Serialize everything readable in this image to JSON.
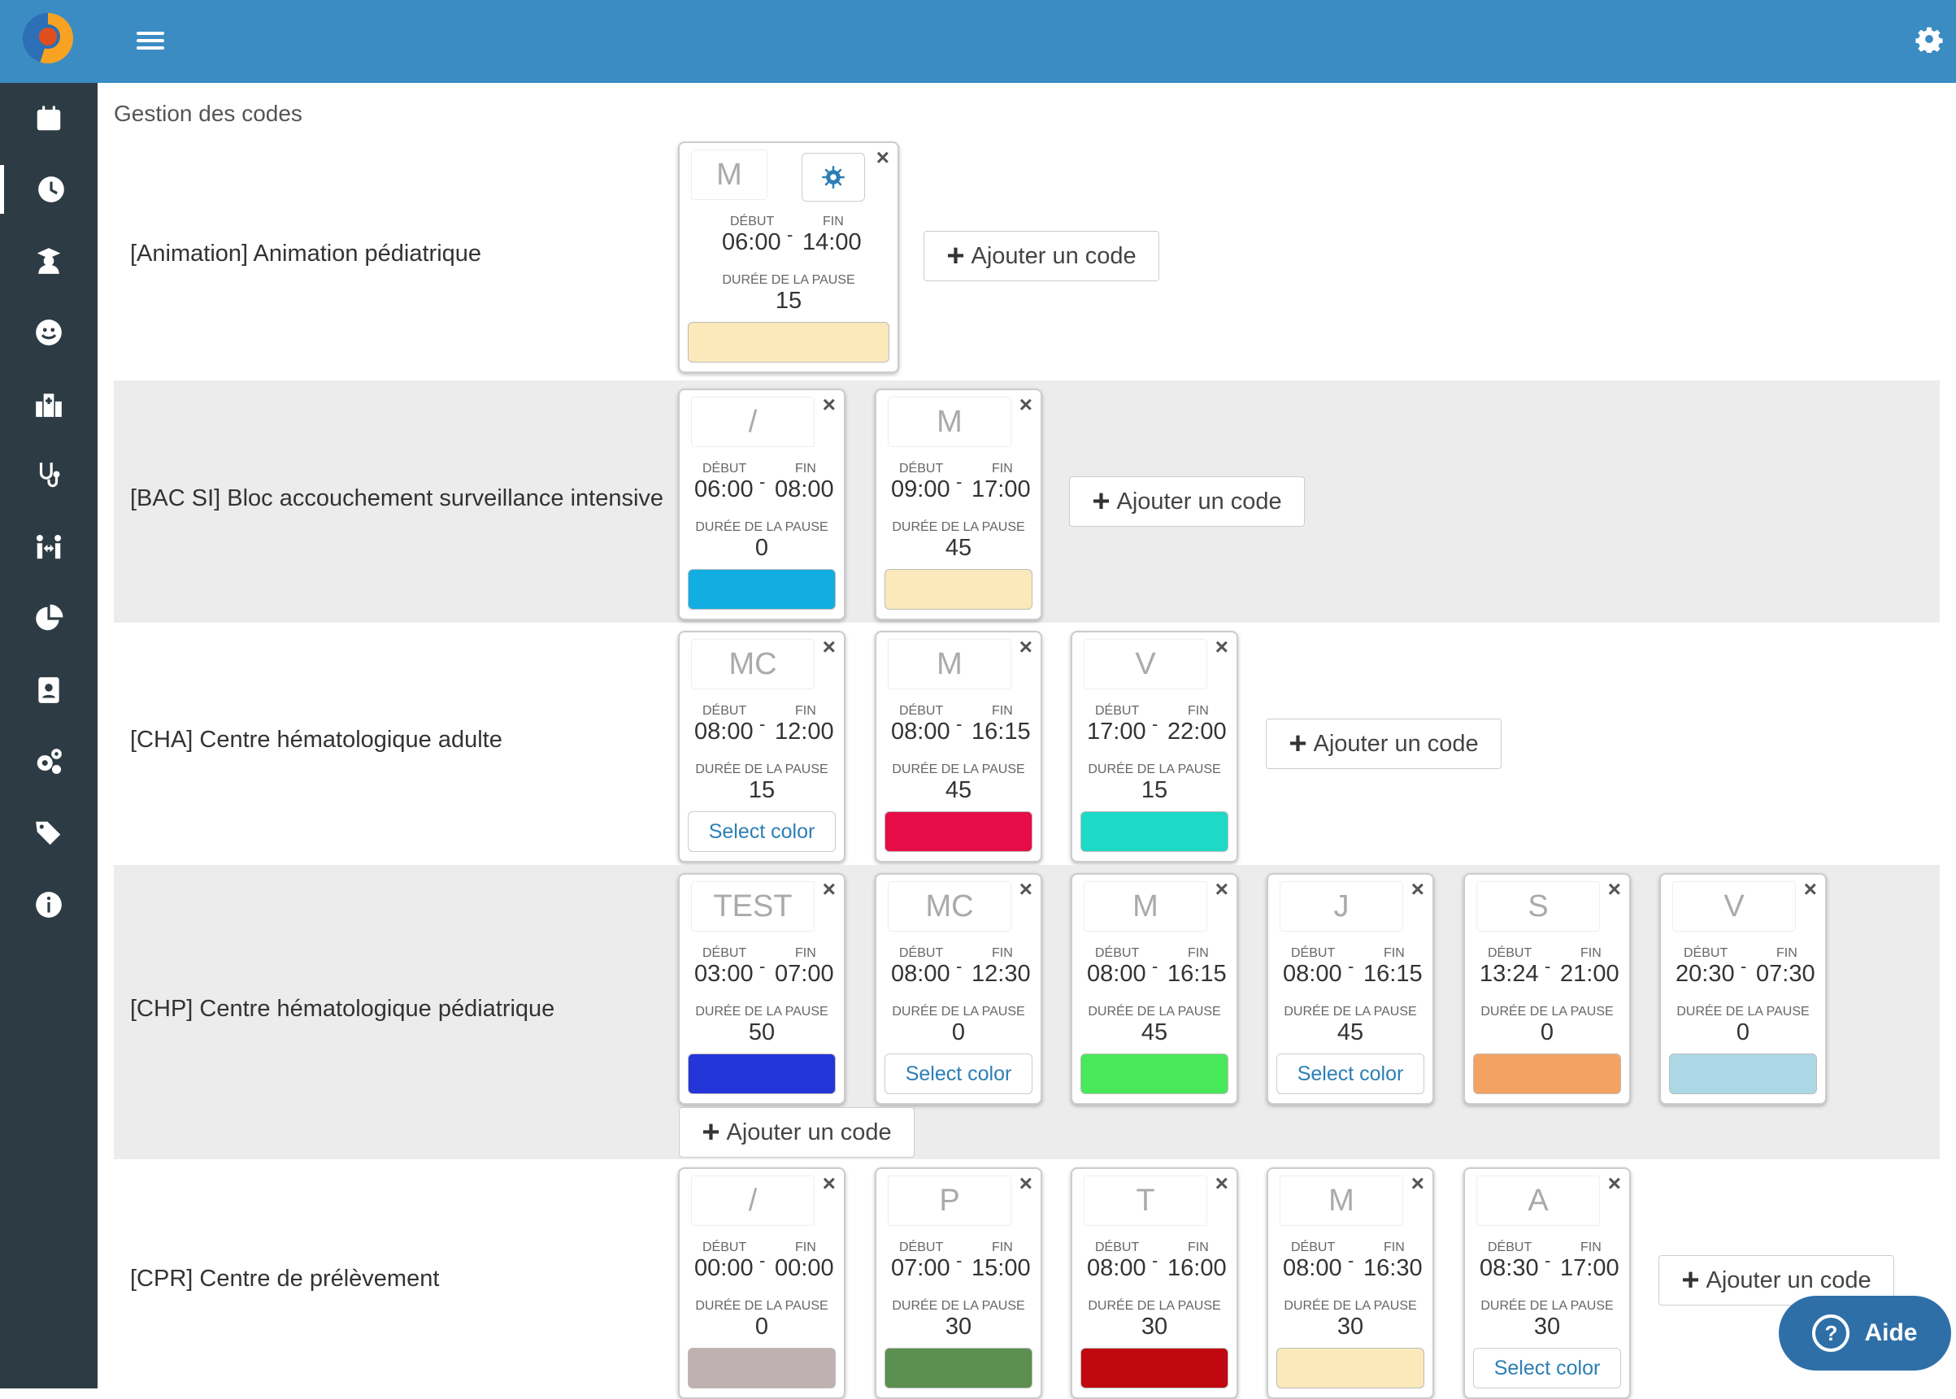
{
  "page_title": "Gestion des codes",
  "labels": {
    "debut": "DÉBUT",
    "fin": "FIN",
    "pause": "DURÉE DE LA PAUSE",
    "add": "Ajouter un code",
    "select_color": "Select color",
    "dash": "-"
  },
  "help": "Aide",
  "sections": [
    {
      "title": "[Animation] Animation pédiatrique",
      "codes": [
        {
          "code": "M",
          "start": "06:00",
          "end": "14:00",
          "pause": "15",
          "color": "#fbe9bb"
        }
      ]
    },
    {
      "title": "[BAC SI] Bloc accouchement surveillance intensive",
      "codes": [
        {
          "code": "/",
          "start": "06:00",
          "end": "08:00",
          "pause": "0",
          "color": "#12aee1"
        },
        {
          "code": "M",
          "start": "09:00",
          "end": "17:00",
          "pause": "45",
          "color": "#fbe9bb"
        }
      ]
    },
    {
      "title": "[CHA] Centre hématologique adulte",
      "codes": [
        {
          "code": "MC",
          "start": "08:00",
          "end": "12:00",
          "pause": "15",
          "color": null
        },
        {
          "code": "M",
          "start": "08:00",
          "end": "16:15",
          "pause": "45",
          "color": "#e50c47"
        },
        {
          "code": "V",
          "start": "17:00",
          "end": "22:00",
          "pause": "15",
          "color": "#1ed9c6"
        }
      ]
    },
    {
      "title": "[CHP] Centre hématologique pédiatrique",
      "codes": [
        {
          "code": "TEST",
          "start": "03:00",
          "end": "07:00",
          "pause": "50",
          "color": "#2536d8"
        },
        {
          "code": "MC",
          "start": "08:00",
          "end": "12:30",
          "pause": "0",
          "color": null
        },
        {
          "code": "M",
          "start": "08:00",
          "end": "16:15",
          "pause": "45",
          "color": "#48e85b"
        },
        {
          "code": "J",
          "start": "08:00",
          "end": "16:15",
          "pause": "45",
          "color": null
        },
        {
          "code": "S",
          "start": "13:24",
          "end": "21:00",
          "pause": "0",
          "color": "#f4a261"
        },
        {
          "code": "V",
          "start": "20:30",
          "end": "07:30",
          "pause": "0",
          "color": "#acd8e6"
        }
      ]
    },
    {
      "title": "[CPR] Centre de prélèvement",
      "codes": [
        {
          "code": "/",
          "start": "00:00",
          "end": "00:00",
          "pause": "0",
          "color": "#bfb1b1"
        },
        {
          "code": "P",
          "start": "07:00",
          "end": "15:00",
          "pause": "30",
          "color": "#5a8f4f"
        },
        {
          "code": "T",
          "start": "08:00",
          "end": "16:00",
          "pause": "30",
          "color": "#c00810"
        },
        {
          "code": "M",
          "start": "08:00",
          "end": "16:30",
          "pause": "30",
          "color": "#fbe9bb"
        },
        {
          "code": "A",
          "start": "08:30",
          "end": "17:00",
          "pause": "30",
          "color": null
        }
      ]
    }
  ],
  "sidebar_icons": [
    "calendar-icon",
    "clock-icon",
    "user-graduate-icon",
    "smile-icon",
    "hospital-icon",
    "stethoscope-icon",
    "people-arrows-icon",
    "pie-chart-icon",
    "id-badge-icon",
    "cogs-icon",
    "tags-icon",
    "info-icon"
  ]
}
